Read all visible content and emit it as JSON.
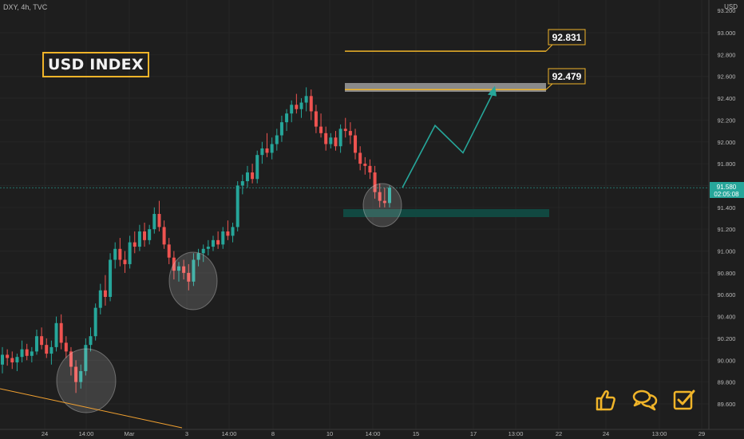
{
  "header": {
    "symbol_line": "DXY, 4h, TVC",
    "currency": "USD"
  },
  "title": "USD INDEX",
  "current_price": {
    "value": "91.580",
    "countdown": "02:05:08"
  },
  "annotations": {
    "target_1": "92.831",
    "target_2": "92.479"
  },
  "colors": {
    "background": "#1e1e1e",
    "up": "#26a69a",
    "down": "#ef5350",
    "accent": "#f0b429",
    "price_line": "#26a69a"
  },
  "icons": [
    "thumbs-up-icon",
    "comments-icon",
    "checkbox-icon"
  ],
  "chart_data": {
    "type": "candlestick",
    "timeframe": "4h",
    "ylim": [
      89.5,
      93.1
    ],
    "y_ticks": [
      "93.000",
      "92.800",
      "92.600",
      "92.400",
      "92.200",
      "92.000",
      "91.800",
      "91.600",
      "91.400",
      "91.200",
      "91.000",
      "90.800",
      "90.600",
      "90.400",
      "90.200",
      "90.000",
      "89.800",
      "89.600"
    ],
    "top_tick_partial": "93.200",
    "x_ticks": [
      "24",
      "14:00",
      "Mar",
      "3",
      "14:00",
      "8",
      "10",
      "14:00",
      "15",
      "17",
      "13:00",
      "22",
      "24",
      "13:00",
      "29"
    ],
    "levels": [
      {
        "price": 92.831,
        "label": "92.831"
      },
      {
        "price": 92.479,
        "label": "92.479"
      }
    ],
    "resistance_zone": [
      92.46,
      92.52
    ],
    "support_zone": [
      91.34,
      91.39
    ],
    "projected_path": [
      91.58,
      92.15,
      91.9,
      92.44
    ],
    "candles": [
      [
        89.96,
        90.12,
        89.88,
        90.05
      ],
      [
        90.05,
        90.1,
        89.95,
        90.02
      ],
      [
        90.02,
        90.08,
        89.92,
        89.98
      ],
      [
        89.98,
        90.06,
        89.9,
        90.03
      ],
      [
        90.03,
        90.18,
        89.98,
        90.1
      ],
      [
        90.1,
        90.15,
        90.0,
        90.04
      ],
      [
        90.04,
        90.12,
        89.98,
        90.08
      ],
      [
        90.08,
        90.28,
        90.05,
        90.22
      ],
      [
        90.22,
        90.3,
        90.1,
        90.14
      ],
      [
        90.14,
        90.2,
        90.02,
        90.06
      ],
      [
        90.06,
        90.18,
        89.96,
        90.12
      ],
      [
        90.12,
        90.4,
        90.08,
        90.34
      ],
      [
        90.34,
        90.42,
        90.1,
        90.16
      ],
      [
        90.16,
        90.22,
        90.02,
        90.08
      ],
      [
        90.08,
        90.12,
        89.86,
        89.94
      ],
      [
        89.94,
        90.0,
        89.7,
        89.8
      ],
      [
        89.8,
        89.96,
        89.74,
        89.9
      ],
      [
        89.9,
        90.2,
        89.86,
        90.14
      ],
      [
        90.14,
        90.3,
        90.08,
        90.22
      ],
      [
        90.22,
        90.52,
        90.18,
        90.48
      ],
      [
        90.48,
        90.7,
        90.42,
        90.64
      ],
      [
        90.64,
        90.78,
        90.5,
        90.58
      ],
      [
        90.58,
        90.98,
        90.54,
        90.92
      ],
      [
        90.92,
        91.08,
        90.84,
        91.02
      ],
      [
        91.02,
        91.12,
        90.86,
        90.92
      ],
      [
        90.92,
        91.0,
        90.8,
        90.88
      ],
      [
        90.88,
        91.14,
        90.84,
        91.08
      ],
      [
        91.08,
        91.18,
        90.98,
        91.04
      ],
      [
        91.04,
        91.24,
        91.0,
        91.18
      ],
      [
        91.18,
        91.26,
        91.04,
        91.1
      ],
      [
        91.1,
        91.24,
        91.06,
        91.2
      ],
      [
        91.2,
        91.4,
        91.16,
        91.34
      ],
      [
        91.34,
        91.46,
        91.18,
        91.22
      ],
      [
        91.22,
        91.28,
        91.02,
        91.06
      ],
      [
        91.06,
        91.12,
        90.88,
        90.94
      ],
      [
        90.94,
        91.0,
        90.74,
        90.82
      ],
      [
        90.82,
        90.9,
        90.72,
        90.86
      ],
      [
        90.86,
        90.92,
        90.74,
        90.8
      ],
      [
        90.8,
        90.88,
        90.64,
        90.72
      ],
      [
        90.72,
        90.98,
        90.68,
        90.92
      ],
      [
        90.92,
        91.02,
        90.86,
        90.98
      ],
      [
        90.98,
        91.06,
        90.9,
        91.02
      ],
      [
        91.02,
        91.1,
        90.96,
        91.04
      ],
      [
        91.04,
        91.14,
        91.0,
        91.1
      ],
      [
        91.1,
        91.18,
        91.02,
        91.06
      ],
      [
        91.06,
        91.22,
        91.02,
        91.18
      ],
      [
        91.18,
        91.28,
        91.1,
        91.14
      ],
      [
        91.14,
        91.26,
        91.08,
        91.22
      ],
      [
        91.22,
        91.64,
        91.18,
        91.6
      ],
      [
        91.6,
        91.7,
        91.52,
        91.64
      ],
      [
        91.64,
        91.78,
        91.58,
        91.72
      ],
      [
        91.72,
        91.8,
        91.62,
        91.66
      ],
      [
        91.66,
        91.92,
        91.62,
        91.88
      ],
      [
        91.88,
        92.0,
        91.8,
        91.94
      ],
      [
        91.94,
        92.08,
        91.86,
        91.9
      ],
      [
        91.9,
        92.04,
        91.84,
        91.98
      ],
      [
        91.98,
        92.12,
        91.92,
        92.06
      ],
      [
        92.06,
        92.24,
        92.0,
        92.18
      ],
      [
        92.18,
        92.3,
        92.1,
        92.26
      ],
      [
        92.26,
        92.38,
        92.18,
        92.34
      ],
      [
        92.34,
        92.44,
        92.26,
        92.3
      ],
      [
        92.3,
        92.4,
        92.22,
        92.36
      ],
      [
        92.36,
        92.5,
        92.28,
        92.42
      ],
      [
        92.42,
        92.48,
        92.2,
        92.28
      ],
      [
        92.28,
        92.34,
        92.08,
        92.14
      ],
      [
        92.14,
        92.26,
        92.04,
        92.08
      ],
      [
        92.08,
        92.14,
        91.92,
        91.98
      ],
      [
        91.98,
        92.08,
        91.94,
        92.04
      ],
      [
        92.04,
        92.1,
        91.92,
        91.96
      ],
      [
        91.96,
        92.16,
        91.9,
        92.12
      ],
      [
        92.12,
        92.22,
        92.04,
        92.1
      ],
      [
        92.1,
        92.18,
        91.98,
        92.06
      ],
      [
        92.06,
        92.12,
        91.84,
        91.9
      ],
      [
        91.9,
        91.96,
        91.74,
        91.8
      ],
      [
        91.8,
        91.86,
        91.7,
        91.78
      ],
      [
        91.78,
        91.84,
        91.66,
        91.72
      ],
      [
        91.72,
        91.78,
        91.48,
        91.54
      ],
      [
        91.54,
        91.62,
        91.4,
        91.46
      ],
      [
        91.46,
        91.58,
        91.4,
        91.44
      ],
      [
        91.44,
        91.6,
        91.4,
        91.58
      ]
    ]
  }
}
